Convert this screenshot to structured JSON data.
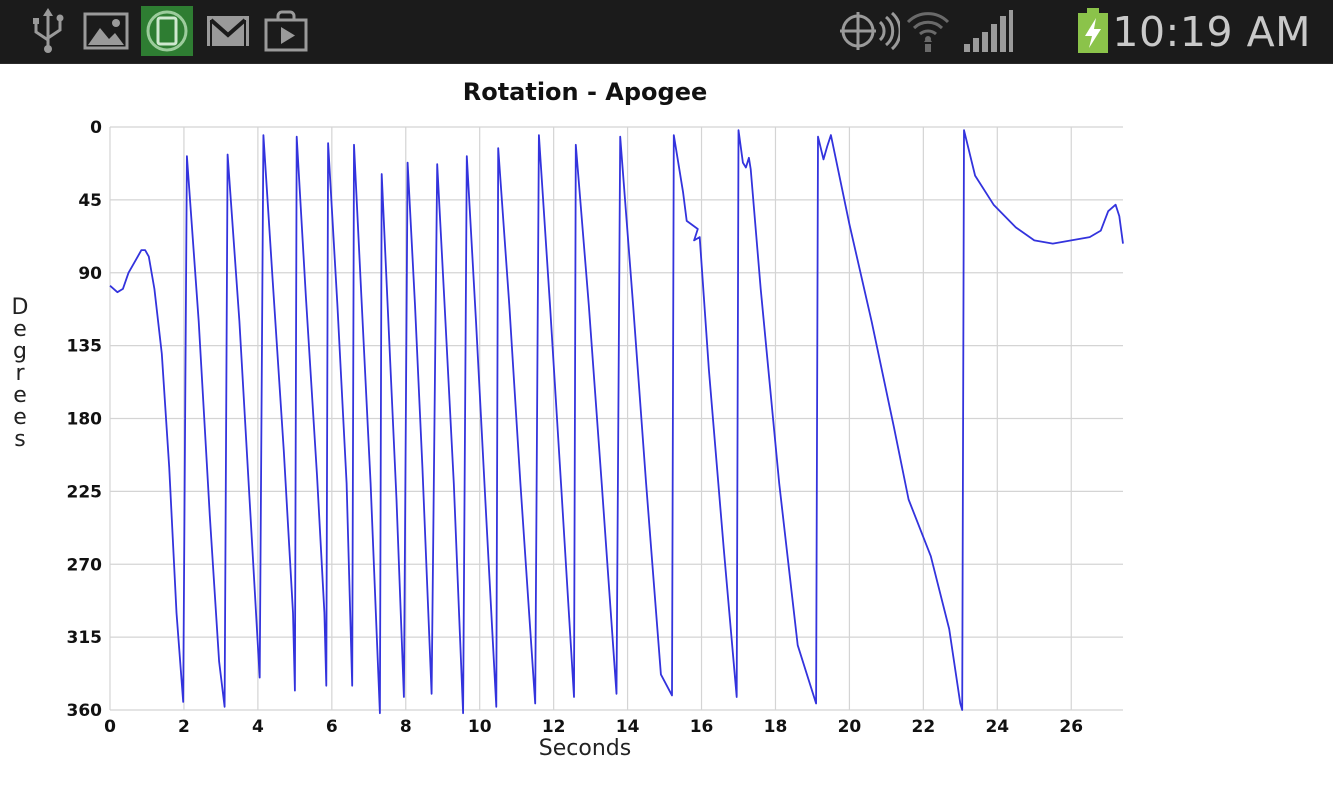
{
  "status_bar": {
    "time": "10:19 AM",
    "left_icons": [
      "usb-icon",
      "gallery-icon",
      "screen-rotation-icon",
      "gmail-icon",
      "play-store-icon"
    ],
    "right_icons": [
      "gps-signal-icon",
      "wifi-icon",
      "cell-signal-icon",
      "battery-charging-icon"
    ],
    "colors": {
      "background": "#1b1b1b",
      "icon": "#9a9a9a",
      "active_icon_bg": "#2e7d32",
      "battery": "#8bc34a"
    }
  },
  "chart_data": {
    "type": "line",
    "title": "Rotation - Apogee",
    "xlabel": "Seconds",
    "ylabel": "Degrees",
    "xlim": [
      0,
      27.4
    ],
    "ylim": [
      0,
      360
    ],
    "y_inverted": true,
    "x_ticks": [
      "0",
      "2",
      "4",
      "6",
      "8",
      "10",
      "12",
      "14",
      "16",
      "18",
      "20",
      "22",
      "24",
      "26"
    ],
    "y_ticks": [
      "0",
      "45",
      "90",
      "135",
      "180",
      "225",
      "270",
      "315",
      "360"
    ],
    "grid": true,
    "line_color": "#3333dd",
    "series": [
      {
        "points": [
          [
            0,
            98
          ],
          [
            0.2,
            102
          ],
          [
            0.35,
            100
          ],
          [
            0.5,
            90
          ],
          [
            0.7,
            82
          ],
          [
            0.85,
            76
          ],
          [
            0.95,
            76
          ],
          [
            1.05,
            80
          ],
          [
            1.2,
            100
          ],
          [
            1.4,
            140
          ],
          [
            1.6,
            210
          ],
          [
            1.8,
            300
          ],
          [
            1.98,
            355
          ],
          [
            2.08,
            18
          ],
          [
            2.4,
            120
          ],
          [
            2.7,
            240
          ],
          [
            2.95,
            330
          ],
          [
            3.1,
            358
          ],
          [
            3.18,
            17
          ],
          [
            3.5,
            120
          ],
          [
            3.8,
            240
          ],
          [
            4.05,
            340
          ],
          [
            4.15,
            5
          ],
          [
            4.4,
            95
          ],
          [
            4.7,
            200
          ],
          [
            4.95,
            300
          ],
          [
            5.0,
            348
          ],
          [
            5.05,
            6
          ],
          [
            5.3,
            105
          ],
          [
            5.6,
            215
          ],
          [
            5.8,
            300
          ],
          [
            5.85,
            345
          ],
          [
            5.9,
            10
          ],
          [
            6.15,
            110
          ],
          [
            6.4,
            220
          ],
          [
            6.55,
            345
          ],
          [
            6.6,
            11
          ],
          [
            6.8,
            105
          ],
          [
            7.05,
            220
          ],
          [
            7.3,
            362
          ],
          [
            7.35,
            29
          ],
          [
            7.55,
            130
          ],
          [
            7.75,
            230
          ],
          [
            7.95,
            352
          ],
          [
            8.05,
            22
          ],
          [
            8.25,
            110
          ],
          [
            8.45,
            210
          ],
          [
            8.7,
            350
          ],
          [
            8.85,
            23
          ],
          [
            9.05,
            110
          ],
          [
            9.3,
            220
          ],
          [
            9.55,
            362
          ],
          [
            9.65,
            18
          ],
          [
            9.9,
            120
          ],
          [
            10.15,
            230
          ],
          [
            10.45,
            358
          ],
          [
            10.5,
            13
          ],
          [
            10.8,
            110
          ],
          [
            11.1,
            220
          ],
          [
            11.5,
            356
          ],
          [
            11.6,
            5
          ],
          [
            11.9,
            110
          ],
          [
            12.2,
            220
          ],
          [
            12.55,
            352
          ],
          [
            12.6,
            11
          ],
          [
            12.95,
            110
          ],
          [
            13.3,
            220
          ],
          [
            13.7,
            350
          ],
          [
            13.8,
            6
          ],
          [
            14.15,
            110
          ],
          [
            14.5,
            220
          ],
          [
            14.9,
            338
          ],
          [
            15.2,
            351
          ],
          [
            15.25,
            5
          ],
          [
            15.5,
            40
          ],
          [
            15.6,
            58
          ],
          [
            15.9,
            63
          ],
          [
            15.8,
            70
          ],
          [
            15.95,
            68
          ],
          [
            16.2,
            150
          ],
          [
            16.6,
            260
          ],
          [
            16.95,
            352
          ],
          [
            17.0,
            2
          ],
          [
            17.12,
            22
          ],
          [
            17.2,
            25
          ],
          [
            17.28,
            19
          ],
          [
            17.33,
            26
          ],
          [
            17.6,
            100
          ],
          [
            18.1,
            220
          ],
          [
            18.6,
            320
          ],
          [
            19.1,
            356
          ],
          [
            19.15,
            6
          ],
          [
            19.3,
            20
          ],
          [
            19.4,
            12
          ],
          [
            19.5,
            5
          ],
          [
            20.0,
            60
          ],
          [
            20.6,
            120
          ],
          [
            21.2,
            185
          ],
          [
            21.6,
            230
          ],
          [
            22.2,
            265
          ],
          [
            22.7,
            310
          ],
          [
            23.0,
            356
          ],
          [
            23.05,
            360
          ],
          [
            23.1,
            2
          ],
          [
            23.4,
            30
          ],
          [
            23.9,
            48
          ],
          [
            24.5,
            62
          ],
          [
            25.0,
            70
          ],
          [
            25.5,
            72
          ],
          [
            26.0,
            70
          ],
          [
            26.5,
            68
          ],
          [
            26.8,
            64
          ],
          [
            27.0,
            52
          ],
          [
            27.2,
            48
          ],
          [
            27.3,
            55
          ],
          [
            27.4,
            72
          ]
        ]
      }
    ]
  }
}
